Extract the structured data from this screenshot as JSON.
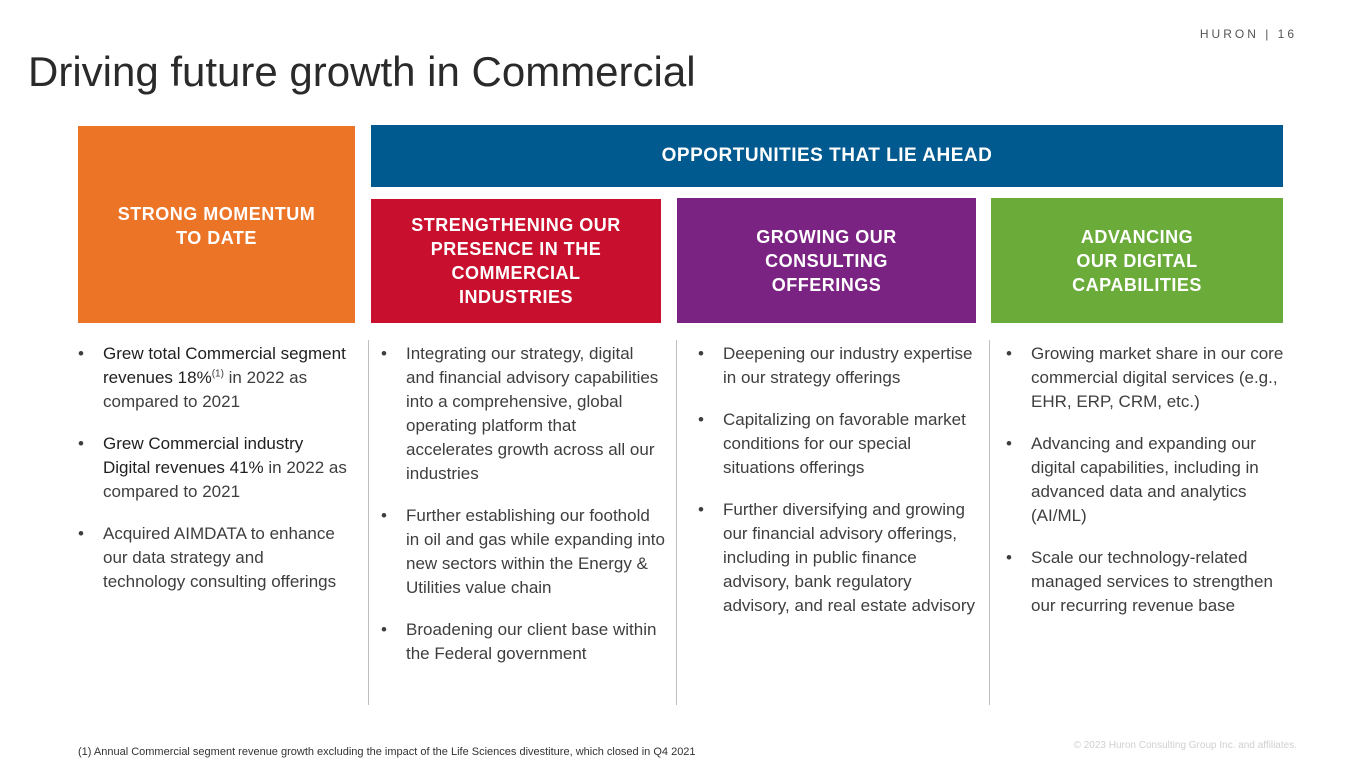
{
  "header": {
    "brand": "HURON | 16",
    "title": "Driving future growth in Commercial"
  },
  "boxes": {
    "momentum": [
      "STRONG MOMENTUM",
      "TO DATE"
    ],
    "ahead": "OPPORTUNITIES THAT LIE AHEAD",
    "strengthening": [
      "STRENGTHENING OUR",
      "PRESENCE IN THE",
      "COMMERCIAL",
      "INDUSTRIES"
    ],
    "growing": [
      "GROWING OUR",
      "CONSULTING",
      "OFFERINGS"
    ],
    "digital": [
      "ADVANCING",
      "OUR DIGITAL",
      "CAPABILITIES"
    ]
  },
  "col1": {
    "b1_highlight": "Grew total Commercial segment revenues 18%",
    "b1_sup": "(1)",
    "b1_rest": " in 2022 as compared to 2021",
    "b2_highlight": "Grew Commercial industry Digital revenues 41%",
    "b2_rest": " in 2022 as compared to 2021",
    "b3": "Acquired AIMDATA to enhance our data strategy and technology consulting offerings"
  },
  "col2": [
    "Integrating our strategy, digital and financial advisory capabilities into a comprehensive, global operating platform that accelerates growth across all our industries",
    "Further establishing our foothold in oil and gas while expanding into new sectors within the Energy & Utilities value chain",
    "Broadening our client base within the Federal government"
  ],
  "col3": [
    "Deepening our industry expertise in our strategy offerings",
    "Capitalizing on favorable market conditions for our special situations offerings",
    "Further diversifying and growing our financial advisory offerings, including in public finance advisory, bank regulatory advisory, and real estate advisory"
  ],
  "col4": [
    "Growing market share in our core commercial digital services (e.g., EHR, ERP, CRM, etc.)",
    "Advancing and expanding our digital capabilities, including in advanced data and analytics (AI/ML)",
    "Scale our technology-related managed services to strengthen our recurring revenue base"
  ],
  "footer": {
    "footnote": "(1) Annual Commercial segment revenue growth excluding the impact of the Life Sciences divestiture, which closed in Q4 2021",
    "copyright": "© 2023 Huron Consulting Group Inc. and affiliates."
  },
  "colors": {
    "orange": "#ec7427",
    "blue": "#00598f",
    "red": "#c8102e",
    "purple": "#7b2382",
    "green": "#6aab3a"
  }
}
